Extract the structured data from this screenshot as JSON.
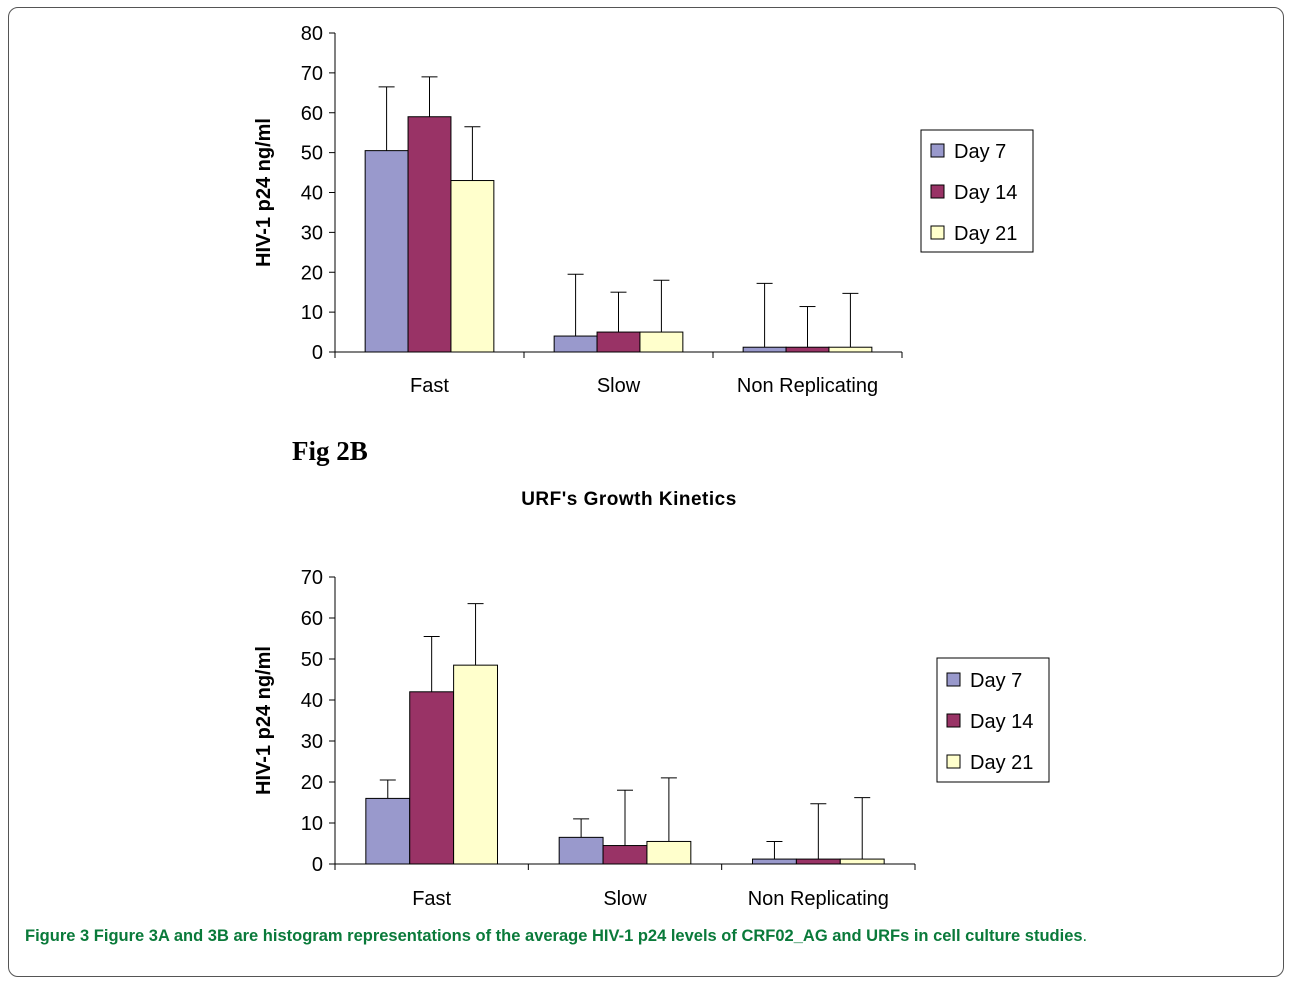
{
  "caption": {
    "label": "Figure 3",
    "text": "Figure 3A and 3B are histogram representations of the average HIV-1 p24 levels of CRF02_AG and URFs in cell culture studies",
    "end": "."
  },
  "fig_label": "Fig 2B",
  "colors": {
    "day7": "#9999cc",
    "day14": "#993366",
    "day21": "#ffffcc",
    "caption": "#0a7a3a"
  },
  "chart_data": [
    {
      "type": "bar",
      "title": "",
      "ylabel": "HIV-1 p24 ng/ml",
      "xlabel": "",
      "ylim": [
        0,
        80
      ],
      "yticks": [
        0,
        10,
        20,
        30,
        40,
        50,
        60,
        70,
        80
      ],
      "categories": [
        "Fast",
        "Slow",
        "Non Replicating"
      ],
      "legend": "right",
      "grid": false,
      "series": [
        {
          "name": "Day 7",
          "values": [
            50.5,
            4,
            1.2
          ],
          "errors": [
            16,
            15.5,
            16
          ]
        },
        {
          "name": "Day 14",
          "values": [
            59,
            5,
            1.2
          ],
          "errors": [
            10,
            10,
            10.2
          ]
        },
        {
          "name": "Day 21",
          "values": [
            43,
            5,
            1.2
          ],
          "errors": [
            13.5,
            13,
            13.5
          ]
        }
      ]
    },
    {
      "type": "bar",
      "title": "URF's Growth Kinetics",
      "ylabel": "HIV-1 p24 ng/ml",
      "xlabel": "",
      "ylim": [
        0,
        70
      ],
      "yticks": [
        0,
        10,
        20,
        30,
        40,
        50,
        60,
        70
      ],
      "categories": [
        "Fast",
        "Slow",
        "Non Replicating"
      ],
      "legend": "right",
      "grid": false,
      "series": [
        {
          "name": "Day 7",
          "values": [
            16,
            6.5,
            1.2
          ],
          "errors": [
            4.5,
            4.5,
            4.3
          ]
        },
        {
          "name": "Day 14",
          "values": [
            42,
            4.5,
            1.2
          ],
          "errors": [
            13.5,
            13.5,
            13.5
          ]
        },
        {
          "name": "Day 21",
          "values": [
            48.5,
            5.5,
            1.2
          ],
          "errors": [
            15,
            15.5,
            15
          ]
        }
      ]
    }
  ]
}
